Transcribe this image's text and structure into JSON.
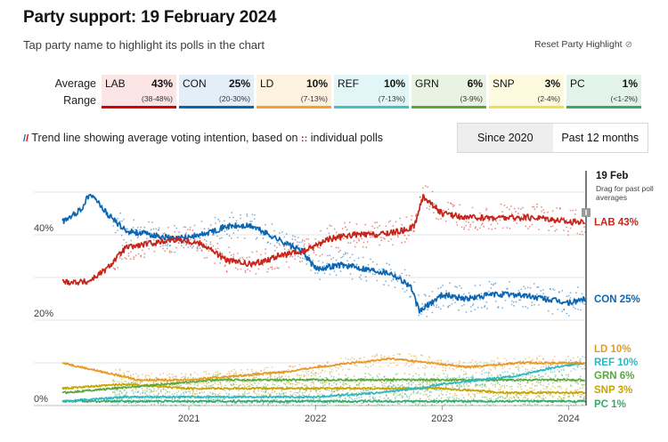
{
  "header": {
    "title": "Party support: 19 February 2024",
    "subtitle": "Tap party name to highlight its polls in the chart",
    "reset_label": "Reset Party Highlight",
    "reset_icon": "reset-icon"
  },
  "legend_rows": {
    "average": "Average",
    "range": "Range"
  },
  "parties": [
    {
      "name": "LAB",
      "pct": "43%",
      "range": "(38-48%)",
      "color": "#d50000",
      "bg": "#fbe5e5"
    },
    {
      "name": "CON",
      "pct": "25%",
      "range": "(20-30%)",
      "color": "#0a66b3",
      "bg": "#e3eef8"
    },
    {
      "name": "LD",
      "pct": "10%",
      "range": "(7-13%)",
      "color": "#f2a12b",
      "bg": "#fdf2df"
    },
    {
      "name": "REF",
      "pct": "10%",
      "range": "(7-13%)",
      "color": "#3fc1c9",
      "bg": "#e3f6f7"
    },
    {
      "name": "GRN",
      "pct": "6%",
      "range": "(3-9%)",
      "color": "#5aa83a",
      "bg": "#e8f3e2"
    },
    {
      "name": "SNP",
      "pct": "3%",
      "range": "(2-4%)",
      "color": "#f0e14a",
      "bg": "#fdfae0"
    },
    {
      "name": "PC",
      "pct": "1%",
      "range": "(<1-2%)",
      "color": "#3aa868",
      "bg": "#e2f3e9"
    }
  ],
  "trend_note": {
    "before": "Trend line showing average voting intention, based on",
    "after": "individual polls"
  },
  "toggle": {
    "since": "Since 2020",
    "past": "Past 12 months",
    "active": "since"
  },
  "chart_header": {
    "date": "19 Feb",
    "drag": "Drag for past poll averages"
  },
  "chart_data": {
    "type": "line",
    "x_range": [
      "2020-01",
      "2024-02"
    ],
    "ylim": [
      0,
      55
    ],
    "y_ticks": [
      "0%",
      "20%",
      "40%"
    ],
    "y_tick_values": [
      0,
      20,
      40
    ],
    "x_ticks": [
      "2021",
      "2022",
      "2023",
      "2024"
    ],
    "x_tick_values": [
      2021.0,
      2022.0,
      2023.0,
      2024.0
    ],
    "grid": true,
    "series": [
      {
        "name": "LAB",
        "end_label": "LAB 43%",
        "color": "#c8241a",
        "x": [
          2020.0,
          2020.2,
          2020.35,
          2020.5,
          2020.7,
          2020.9,
          2021.1,
          2021.3,
          2021.5,
          2021.7,
          2021.9,
          2022.1,
          2022.3,
          2022.5,
          2022.7,
          2022.78,
          2022.85,
          2023.0,
          2023.2,
          2023.4,
          2023.6,
          2023.8,
          2024.0,
          2024.13
        ],
        "y": [
          29,
          29,
          32,
          37,
          38,
          39,
          38,
          34,
          33,
          35,
          36,
          39,
          40,
          40,
          41,
          42,
          49,
          45,
          44,
          44,
          44,
          44,
          43,
          43
        ]
      },
      {
        "name": "CON",
        "end_label": "CON 25%",
        "color": "#0a66b3",
        "x": [
          2020.0,
          2020.15,
          2020.22,
          2020.35,
          2020.5,
          2020.7,
          2020.9,
          2021.1,
          2021.3,
          2021.5,
          2021.7,
          2021.9,
          2022.0,
          2022.2,
          2022.4,
          2022.6,
          2022.75,
          2022.82,
          2023.0,
          2023.2,
          2023.4,
          2023.6,
          2023.8,
          2024.0,
          2024.13
        ],
        "y": [
          43,
          46,
          50,
          45,
          41,
          40,
          39,
          40,
          42,
          42,
          39,
          36,
          32,
          33,
          32,
          31,
          28,
          22,
          26,
          25,
          26,
          26,
          25,
          24,
          25
        ]
      },
      {
        "name": "LD",
        "end_label": "LD 10%",
        "color": "#e69a25",
        "x": [
          2020.0,
          2020.3,
          2020.6,
          2021.0,
          2021.4,
          2021.8,
          2022.0,
          2022.3,
          2022.6,
          2022.9,
          2023.2,
          2023.6,
          2024.0,
          2024.13
        ],
        "y": [
          10,
          8,
          6,
          6,
          7,
          8,
          9,
          10,
          11,
          10,
          9,
          10,
          10,
          10
        ]
      },
      {
        "name": "REF",
        "end_label": "REF 10%",
        "color": "#2fb7c0",
        "x": [
          2020.0,
          2020.5,
          2021.0,
          2021.5,
          2022.0,
          2022.5,
          2022.8,
          2023.0,
          2023.3,
          2023.6,
          2023.9,
          2024.13
        ],
        "y": [
          1,
          2,
          2,
          2,
          2,
          3,
          4,
          5,
          6,
          7,
          9,
          10
        ]
      },
      {
        "name": "GRN",
        "end_label": "GRN 6%",
        "color": "#5aa83a",
        "x": [
          2020.0,
          2020.4,
          2020.8,
          2021.2,
          2021.6,
          2022.0,
          2022.4,
          2022.8,
          2023.2,
          2023.6,
          2024.0,
          2024.13
        ],
        "y": [
          3,
          4,
          5,
          6,
          6,
          6,
          6,
          6,
          6,
          6,
          6,
          6
        ]
      },
      {
        "name": "SNP",
        "end_label": "SNP 3%",
        "color": "#c9a400",
        "x": [
          2020.0,
          2020.5,
          2021.0,
          2021.5,
          2022.0,
          2022.5,
          2023.0,
          2023.5,
          2024.0,
          2024.13
        ],
        "y": [
          4,
          5,
          4,
          4,
          4,
          4,
          4,
          3,
          3,
          3
        ]
      },
      {
        "name": "PC",
        "end_label": "PC 1%",
        "color": "#3aa868",
        "x": [
          2020.0,
          2021.0,
          2022.0,
          2023.0,
          2024.0,
          2024.13
        ],
        "y": [
          1,
          1,
          1,
          1,
          1,
          1
        ]
      }
    ]
  }
}
